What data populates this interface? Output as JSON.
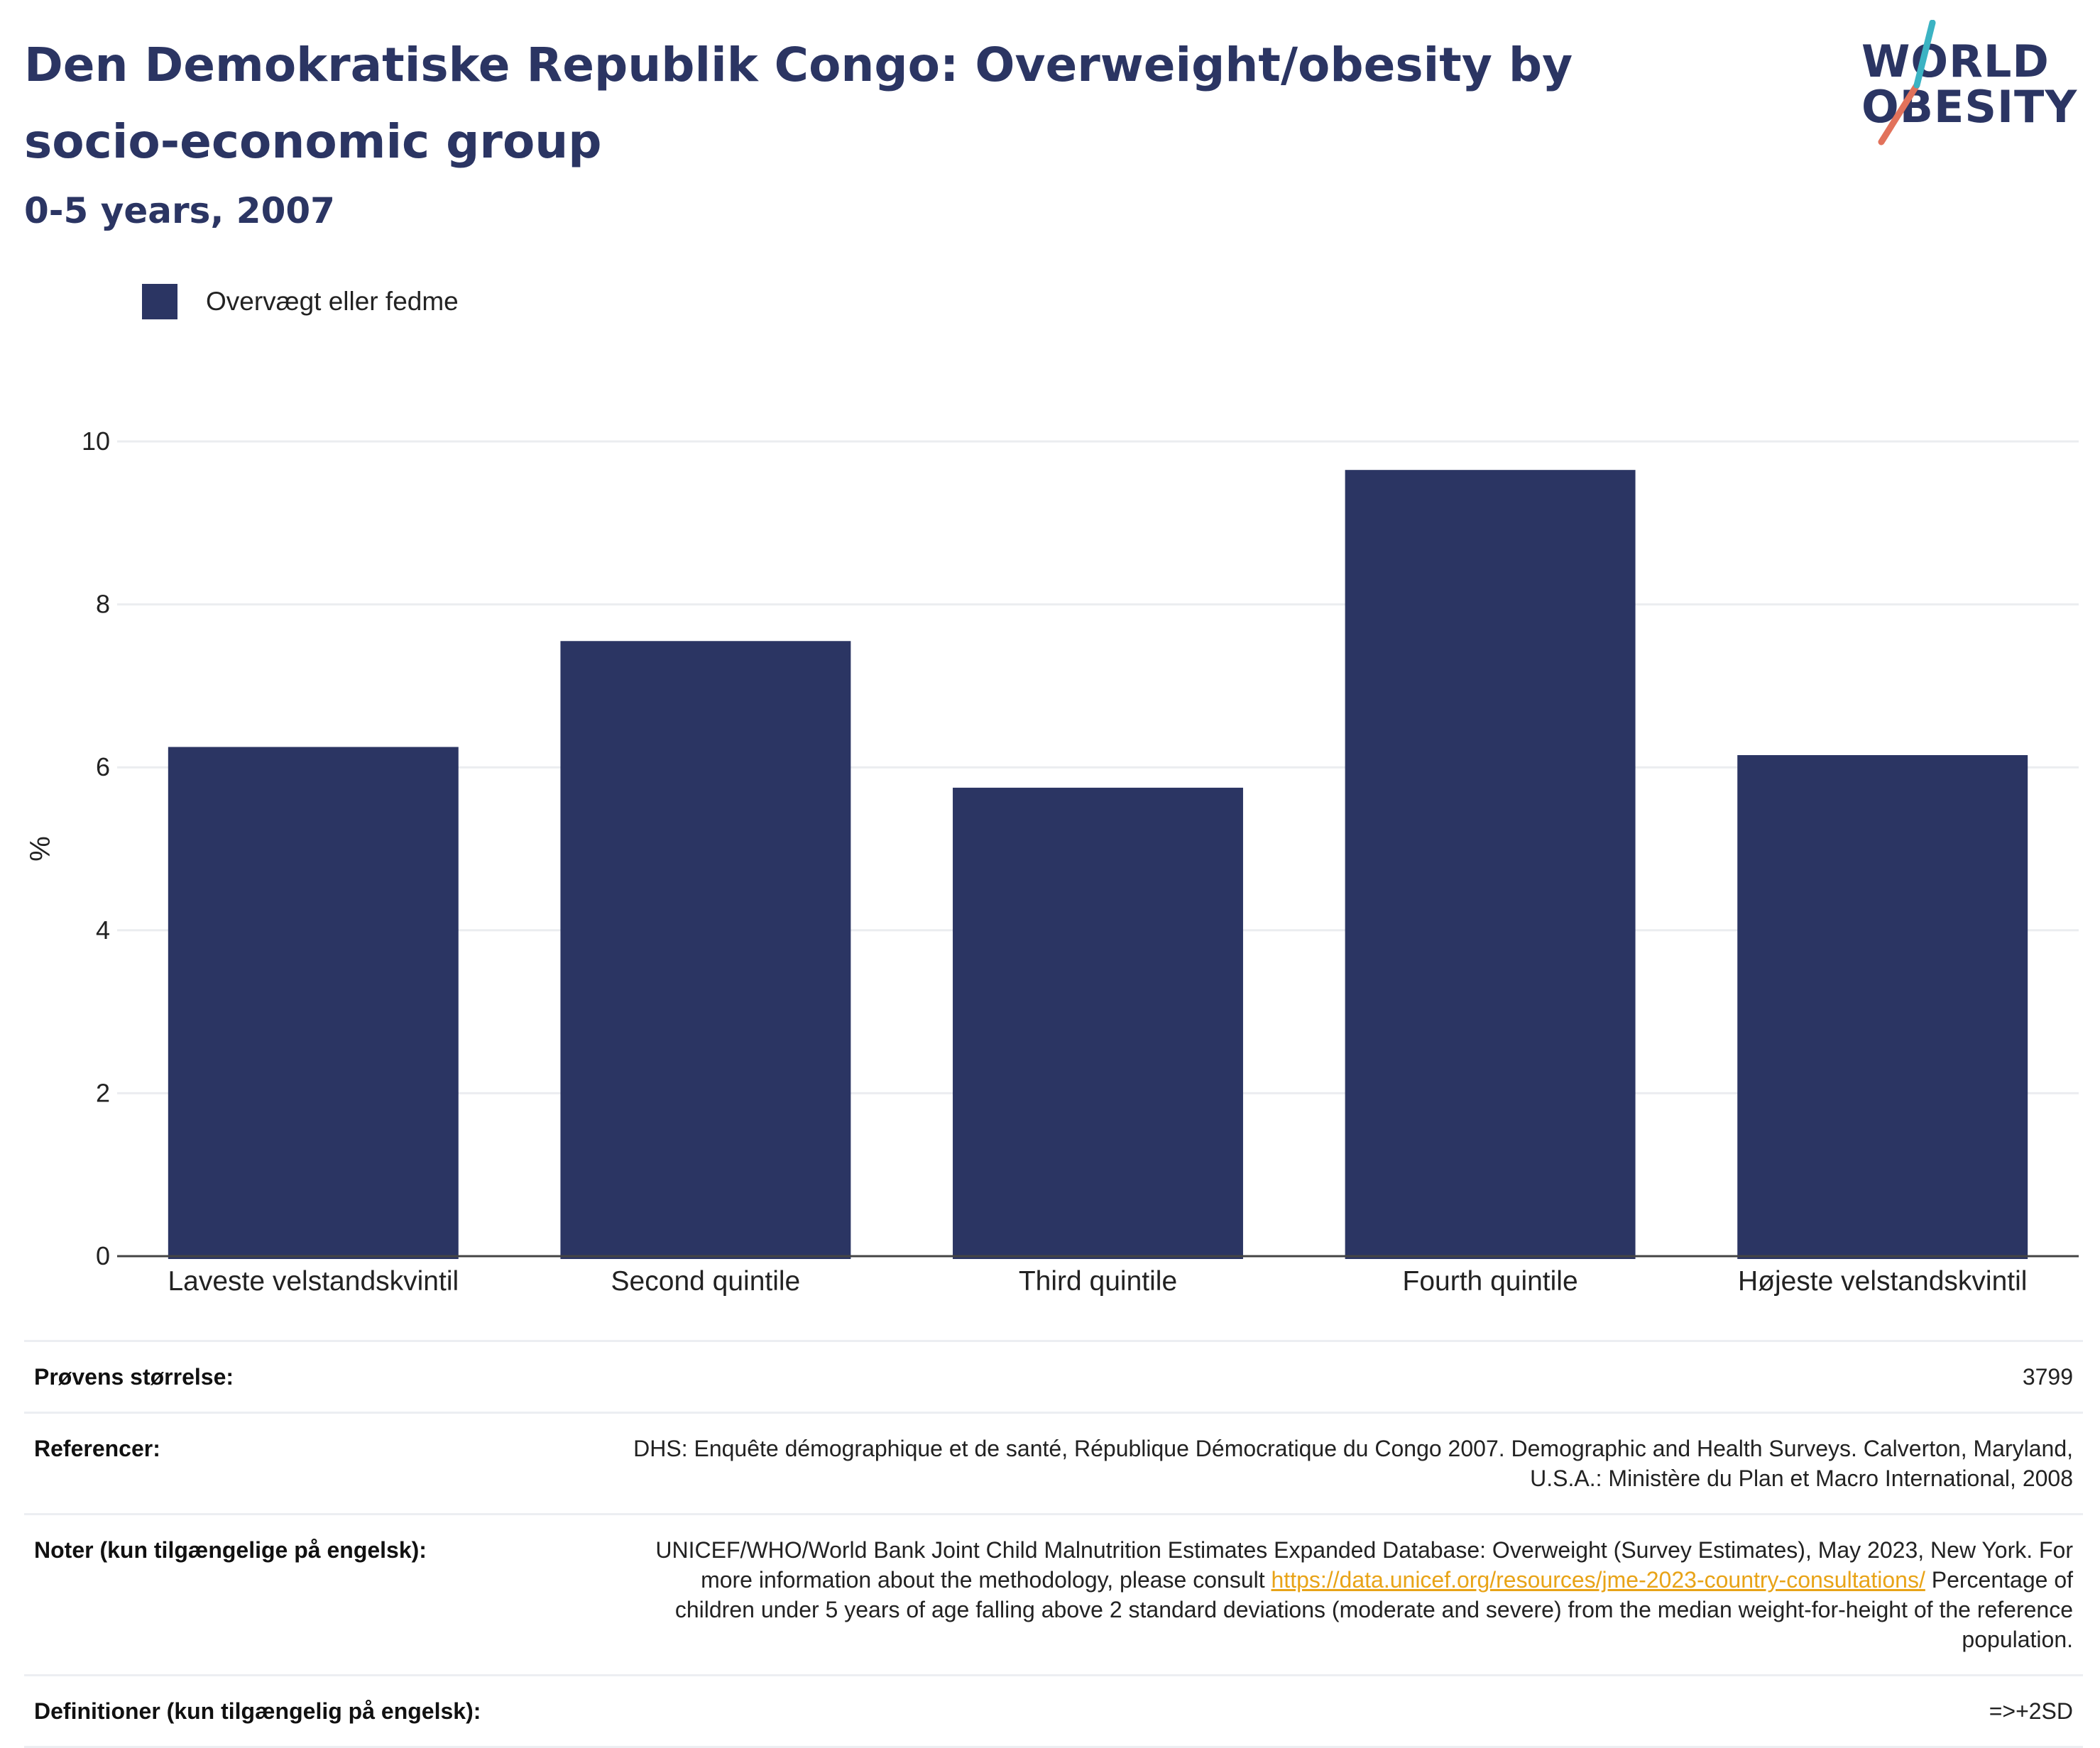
{
  "header": {
    "title": "Den Demokratiske Republik Congo: Overweight/obesity by socio-economic group",
    "subtitle": "0-5 years, 2007"
  },
  "logo": {
    "line1": "WORLD",
    "line2": "OBESITY",
    "slash_colors": [
      "#e2725b",
      "#3bb3c3"
    ]
  },
  "legend": {
    "label": "Overvægt eller fedme",
    "color": "#2b3563"
  },
  "chart_data": {
    "type": "bar",
    "categories": [
      "Laveste velstandskvintil",
      "Second quintile",
      "Third quintile",
      "Fourth quintile",
      "Højeste velstandskvintil"
    ],
    "series": [
      {
        "name": "Overvægt eller fedme",
        "values": [
          6.25,
          7.55,
          5.75,
          9.65,
          6.15
        ],
        "color": "#2b3563"
      }
    ],
    "ylabel": "%",
    "ylim": [
      0,
      10
    ],
    "yticks": [
      0,
      2,
      4,
      6,
      8,
      10
    ],
    "grid": true
  },
  "info": {
    "sample_label": "Prøvens størrelse:",
    "sample_value": "3799",
    "references_label": "Referencer:",
    "references_value": "DHS: Enquête démographique et de santé, République Démocratique du Congo 2007. Demographic and Health Surveys. Calverton, Maryland, U.S.A.: Ministère du Plan et Macro International, 2008",
    "notes_label": "Noter (kun tilgængelige på engelsk):",
    "notes_text_1": "UNICEF/WHO/World Bank Joint Child Malnutrition Estimates Expanded Database: Overweight (Survey Estimates), May 2023, New York. For more information about the methodology, please consult ",
    "notes_link": "https://data.unicef.org/resources/jme-2023-country-consultations/",
    "notes_text_2": " Percentage of children under 5 years of age falling above 2 standard deviations (moderate and severe) from the median weight-for-height of the reference population.",
    "definitions_label": "Definitioner (kun tilgængelig på engelsk):",
    "definitions_value": "=>+2SD"
  }
}
